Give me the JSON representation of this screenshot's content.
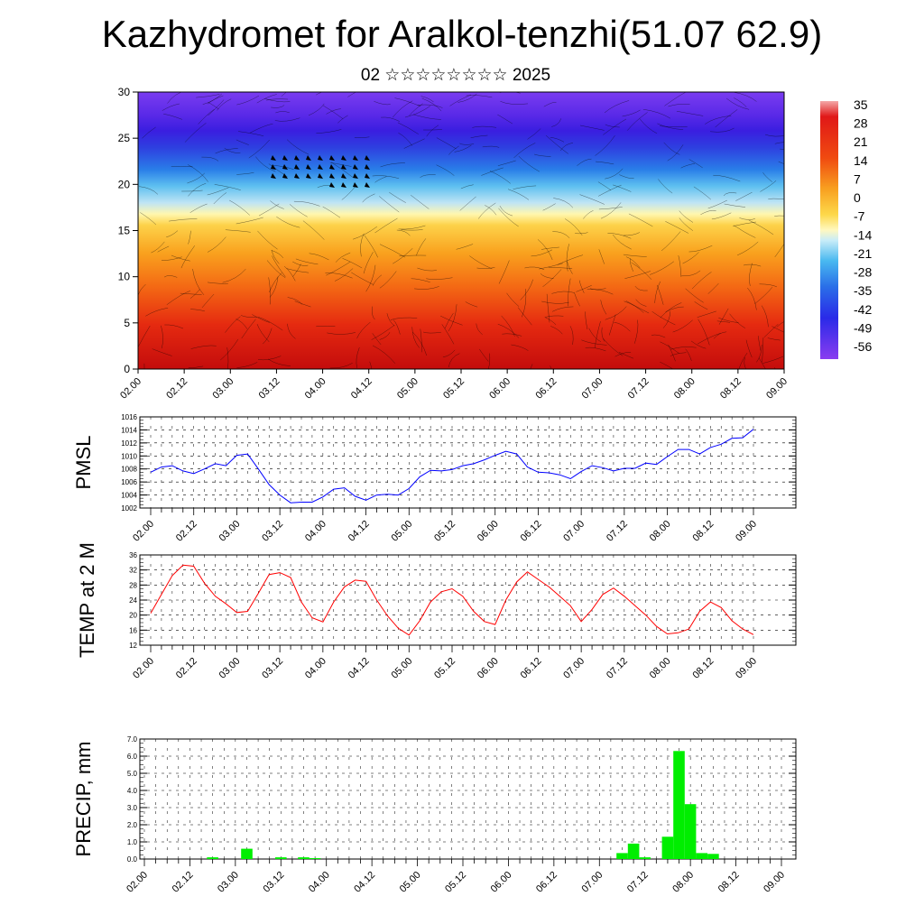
{
  "title": "Kazhydromet for Aralkol-tenzhi(51.07 62.9)",
  "subtitle": "02 ☆☆☆☆☆☆☆☆ 2025",
  "time_ticks": [
    "02.00",
    "02.12",
    "03.00",
    "03.12",
    "04.00",
    "04.12",
    "05.00",
    "05.12",
    "06.00",
    "06.12",
    "07.00",
    "07.12",
    "08.00",
    "08.12",
    "09.00"
  ],
  "chart_data": [
    {
      "type": "heatmap",
      "yticks": [
        "0",
        "5",
        "10",
        "15",
        "20",
        "25",
        "30"
      ],
      "ylim": [
        0,
        30
      ],
      "colorbar_labels": [
        "35",
        "28",
        "21",
        "14",
        "7",
        "0",
        "-7",
        "-14",
        "-21",
        "-28",
        "-35",
        "-42",
        "-49",
        "-56"
      ],
      "colors": {
        "low": "#7a2cf0",
        "mid": "#fff4a0",
        "high": "#c81010"
      }
    },
    {
      "type": "line",
      "ylabel": "PMSL",
      "ylim": [
        1002,
        1016
      ],
      "yticks": [
        "1002",
        "1004",
        "1006",
        "1008",
        "1010",
        "1012",
        "1014",
        "1016"
      ],
      "color": "#0000ff",
      "values": [
        1007.5,
        1008.3,
        1008.5,
        1007.7,
        1007.3,
        1008.0,
        1008.8,
        1008.5,
        1010.1,
        1010.3,
        1008.0,
        1005.6,
        1004.0,
        1002.8,
        1002.9,
        1002.9,
        1003.7,
        1004.9,
        1005.1,
        1003.8,
        1003.2,
        1004.0,
        1004.1,
        1004.0,
        1005.0,
        1006.8,
        1007.8,
        1007.7,
        1007.9,
        1008.5,
        1008.8,
        1009.4,
        1010.1,
        1010.7,
        1010.3,
        1008.3,
        1007.5,
        1007.4,
        1007.1,
        1006.5,
        1007.6,
        1008.5,
        1008.2,
        1007.7,
        1008.1,
        1008.1,
        1008.9,
        1008.7,
        1009.9,
        1011.0,
        1011.0,
        1010.3,
        1011.3,
        1011.8,
        1012.7,
        1012.8,
        1014.1
      ]
    },
    {
      "type": "line",
      "ylabel": "TEMP at 2 M",
      "ylim": [
        12,
        36
      ],
      "yticks": [
        "12",
        "16",
        "20",
        "24",
        "28",
        "32",
        "36"
      ],
      "color": "#ff0000",
      "values": [
        20.5,
        25.5,
        30.5,
        33.3,
        33.0,
        28.5,
        25.0,
        23.0,
        20.7,
        21.0,
        25.8,
        30.8,
        31.3,
        30.0,
        23.5,
        19.3,
        18.2,
        23.5,
        27.5,
        29.3,
        29.0,
        24.0,
        19.8,
        16.5,
        14.7,
        18.5,
        23.5,
        26.2,
        27.0,
        25.0,
        21.0,
        18.3,
        17.5,
        24.0,
        28.8,
        31.5,
        29.5,
        27.5,
        25.0,
        22.5,
        18.3,
        21.5,
        25.5,
        27.2,
        25.0,
        22.5,
        20.0,
        17.0,
        15.0,
        15.3,
        16.3,
        21.0,
        23.5,
        22.0,
        18.5,
        16.3,
        14.8
      ]
    },
    {
      "type": "bar",
      "ylabel": "PRECIP, mm",
      "ylim": [
        0,
        7
      ],
      "yticks": [
        "0.0",
        "1.0",
        "2.0",
        "3.0",
        "4.0",
        "5.0",
        "6.0",
        "7.0"
      ],
      "color": "#00ee00",
      "bars": [
        {
          "t": 6,
          "value": 0.1
        },
        {
          "t": 9,
          "value": 0.6
        },
        {
          "t": 12,
          "value": 0.1
        },
        {
          "t": 14,
          "value": 0.1
        },
        {
          "t": 15,
          "value": 0.05
        },
        {
          "t": 42,
          "value": 0.35
        },
        {
          "t": 43,
          "value": 0.9
        },
        {
          "t": 44,
          "value": 0.1
        },
        {
          "t": 46,
          "value": 1.3
        },
        {
          "t": 47,
          "value": 6.3
        },
        {
          "t": 48,
          "value": 3.2
        },
        {
          "t": 49,
          "value": 0.35
        },
        {
          "t": 50,
          "value": 0.3
        }
      ]
    }
  ]
}
